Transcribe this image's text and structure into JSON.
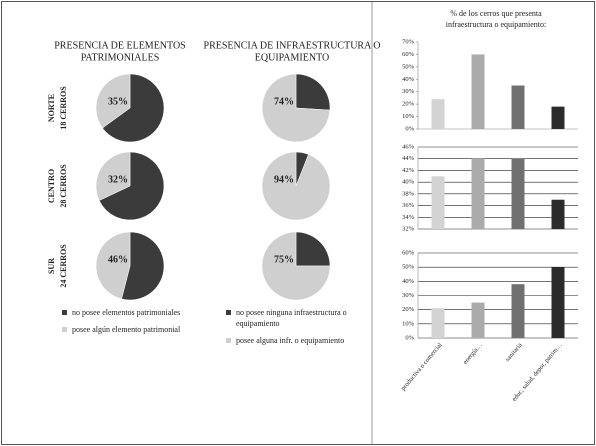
{
  "row_labels": [
    [
      "NORTE",
      "18 CERROS"
    ],
    [
      "CENTRO",
      "28 CERROS"
    ],
    [
      "SUR",
      "24 CERROS"
    ]
  ],
  "chart_data": [
    {
      "type": "pie",
      "title": [
        "PRESENCIA DE ELEMENTOS",
        "PATRIMONIALES"
      ],
      "categories": [
        [
          "no posee elementos patrimoniales"
        ],
        [
          "posee algún elemento patrimonial"
        ]
      ],
      "colors": [
        "#3b3b3b",
        "#cfcfcf"
      ],
      "pies": [
        {
          "values": [
            65,
            35
          ],
          "value_labels": [
            null,
            "35%"
          ]
        },
        {
          "values": [
            68,
            32
          ],
          "value_labels": [
            null,
            "32%"
          ]
        },
        {
          "values": [
            54,
            46
          ],
          "value_labels": [
            null,
            "46%"
          ]
        }
      ]
    },
    {
      "type": "pie",
      "title": [
        "PRESENCIA DE INFRAESTRUCTURA O",
        "EQUIPAMIENTO"
      ],
      "categories": [
        [
          "no posee ninguna infraestructura o",
          "equipamiento"
        ],
        [
          "posee alguna infr. o equipamiento"
        ]
      ],
      "colors": [
        "#3b3b3b",
        "#cfcfcf"
      ],
      "pies": [
        {
          "values": [
            26,
            74
          ],
          "value_labels": [
            null,
            "74%"
          ]
        },
        {
          "values": [
            6,
            94
          ],
          "value_labels": [
            null,
            "94%"
          ]
        },
        {
          "values": [
            25,
            75
          ],
          "value_labels": [
            null,
            "75%"
          ]
        }
      ]
    },
    {
      "type": "bar",
      "title": [
        "% de los  cerros que presenta",
        "infraestructura  o equipamiento:"
      ],
      "categories": [
        "productiva o comercial",
        "energía…",
        "sanitaria",
        "educ, salud, depor, patrim…"
      ],
      "colors": [
        "#d3d3d3",
        "#ababab",
        "#707070",
        "#2b2b2b"
      ],
      "panels": [
        {
          "values": [
            24,
            60,
            35,
            18
          ],
          "ylim": [
            0,
            70
          ],
          "grid": false,
          "yticks": [
            {
              "value": 0,
              "label": "0%"
            },
            {
              "value": 10,
              "label": "10%"
            },
            {
              "value": 20,
              "label": "20%"
            },
            {
              "value": 30,
              "label": "30%"
            },
            {
              "value": 40,
              "label": "40%"
            },
            {
              "value": 50,
              "label": "50%"
            },
            {
              "value": 60,
              "label": "60%"
            },
            {
              "value": 70,
              "label": "70%"
            }
          ]
        },
        {
          "values": [
            41,
            44,
            44,
            37
          ],
          "ylim": [
            32,
            46
          ],
          "grid": true,
          "yticks": [
            {
              "value": 32,
              "label": "32%"
            },
            {
              "value": 34,
              "label": "34%"
            },
            {
              "value": 36,
              "label": "36%"
            },
            {
              "value": 38,
              "label": "38%"
            },
            {
              "value": 40,
              "label": "40%"
            },
            {
              "value": 42,
              "label": "42%"
            },
            {
              "value": 44,
              "label": "44%"
            },
            {
              "value": 46,
              "label": "46%"
            }
          ]
        },
        {
          "values": [
            21,
            25,
            38,
            50
          ],
          "ylim": [
            0,
            60
          ],
          "grid": true,
          "yticks": [
            {
              "value": 0,
              "label": "0%"
            },
            {
              "value": 10,
              "label": "10%"
            },
            {
              "value": 20,
              "label": "20%"
            },
            {
              "value": 30,
              "label": "30%"
            },
            {
              "value": 40,
              "label": "40%"
            },
            {
              "value": 50,
              "label": "50%"
            },
            {
              "value": 60,
              "label": "60%"
            }
          ]
        }
      ]
    }
  ]
}
